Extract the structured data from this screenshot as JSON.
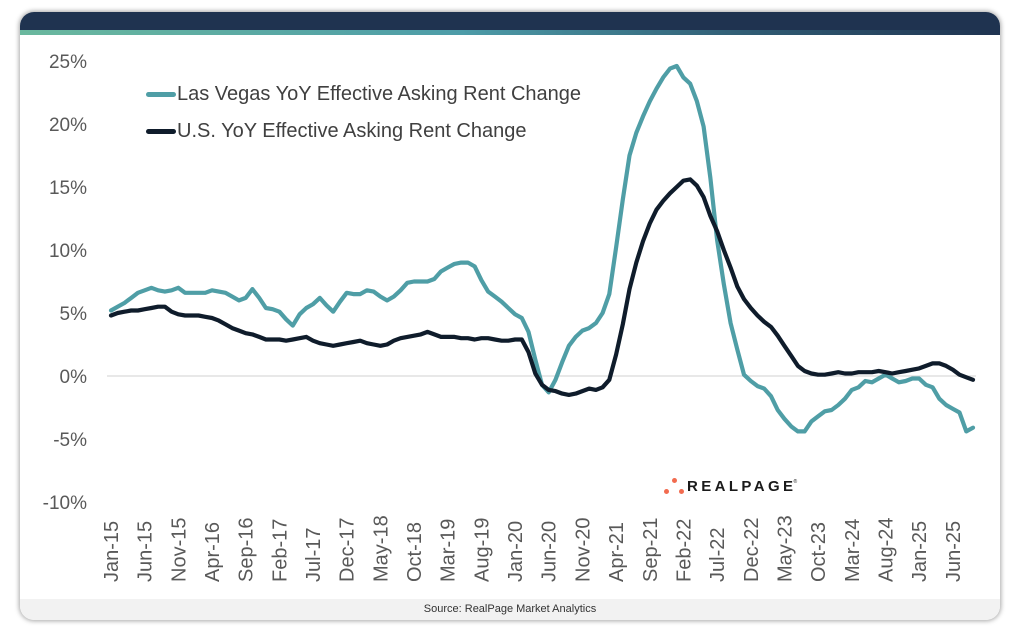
{
  "footer": {
    "source": "Source: RealPage Market Analytics"
  },
  "logo": {
    "text": "REALPAGE",
    "registered": "®",
    "dot_color": "#f26b4f"
  },
  "theme": {
    "header_color": "#1f3350",
    "footer_color": "#f2f2f2"
  },
  "chart_data": {
    "type": "line",
    "title": "",
    "xlabel": "",
    "ylabel": "",
    "ylim": [
      -10,
      25
    ],
    "yticks": [
      25,
      20,
      15,
      10,
      5,
      0,
      -5,
      -10
    ],
    "ytick_labels": [
      "25%",
      "20%",
      "15%",
      "10%",
      "5%",
      "0%",
      "-5%",
      "-10%"
    ],
    "grid": "zero line only",
    "legend_position": "top-left",
    "xticks": [
      "Jan-15",
      "Jun-15",
      "Nov-15",
      "Apr-16",
      "Sep-16",
      "Feb-17",
      "Jul-17",
      "Dec-17",
      "May-18",
      "Oct-18",
      "Mar-19",
      "Aug-19",
      "Jan-20",
      "Jun-20",
      "Nov-20",
      "Apr-21",
      "Sep-21",
      "Feb-22",
      "Jul-22",
      "Dec-22",
      "May-23",
      "Oct-23",
      "Mar-24",
      "Aug-24",
      "Jan-25",
      "Jun-25"
    ],
    "x": [
      "Jan-15",
      "Feb-15",
      "Mar-15",
      "Apr-15",
      "May-15",
      "Jun-15",
      "Jul-15",
      "Aug-15",
      "Sep-15",
      "Oct-15",
      "Nov-15",
      "Dec-15",
      "Jan-16",
      "Feb-16",
      "Mar-16",
      "Apr-16",
      "May-16",
      "Jun-16",
      "Jul-16",
      "Aug-16",
      "Sep-16",
      "Oct-16",
      "Nov-16",
      "Dec-16",
      "Jan-17",
      "Feb-17",
      "Mar-17",
      "Apr-17",
      "May-17",
      "Jun-17",
      "Jul-17",
      "Aug-17",
      "Sep-17",
      "Oct-17",
      "Nov-17",
      "Dec-17",
      "Jan-18",
      "Feb-18",
      "Mar-18",
      "Apr-18",
      "May-18",
      "Jun-18",
      "Jul-18",
      "Aug-18",
      "Sep-18",
      "Oct-18",
      "Nov-18",
      "Dec-18",
      "Jan-19",
      "Feb-19",
      "Mar-19",
      "Apr-19",
      "May-19",
      "Jun-19",
      "Jul-19",
      "Aug-19",
      "Sep-19",
      "Oct-19",
      "Nov-19",
      "Dec-19",
      "Jan-20",
      "Feb-20",
      "Mar-20",
      "Apr-20",
      "May-20",
      "Jun-20",
      "Jul-20",
      "Aug-20",
      "Sep-20",
      "Oct-20",
      "Nov-20",
      "Dec-20",
      "Jan-21",
      "Feb-21",
      "Mar-21",
      "Apr-21",
      "May-21",
      "Jun-21",
      "Jul-21",
      "Aug-21",
      "Sep-21",
      "Oct-21",
      "Nov-21",
      "Dec-21",
      "Jan-22",
      "Feb-22",
      "Mar-22",
      "Apr-22",
      "May-22",
      "Jun-22",
      "Jul-22",
      "Aug-22",
      "Sep-22",
      "Oct-22",
      "Nov-22",
      "Dec-22",
      "Jan-23",
      "Feb-23",
      "Mar-23",
      "Apr-23",
      "May-23",
      "Jun-23",
      "Jul-23",
      "Aug-23",
      "Sep-23",
      "Oct-23",
      "Nov-23",
      "Dec-23",
      "Jan-24",
      "Feb-24",
      "Mar-24",
      "Apr-24",
      "May-24",
      "Jun-24",
      "Jul-24",
      "Aug-24",
      "Sep-24",
      "Oct-24",
      "Nov-24",
      "Dec-24",
      "Jan-25",
      "Feb-25",
      "Mar-25",
      "Apr-25",
      "May-25",
      "Jun-25",
      "Jul-25",
      "Aug-25",
      "Sep-25"
    ],
    "series": [
      {
        "name": "Las Vegas YoY Effective Asking Rent Change",
        "color": "#4f9ea6",
        "values": [
          5.2,
          5.5,
          5.8,
          6.2,
          6.6,
          6.8,
          7.0,
          6.8,
          6.7,
          6.8,
          7.0,
          6.6,
          6.6,
          6.6,
          6.6,
          6.8,
          6.7,
          6.6,
          6.3,
          6.0,
          6.2,
          6.9,
          6.2,
          5.4,
          5.3,
          5.1,
          4.5,
          4.0,
          4.9,
          5.4,
          5.7,
          6.2,
          5.6,
          5.1,
          5.9,
          6.6,
          6.5,
          6.5,
          6.8,
          6.7,
          6.3,
          6.0,
          6.3,
          6.8,
          7.4,
          7.5,
          7.5,
          7.5,
          7.7,
          8.3,
          8.6,
          8.9,
          9.0,
          9.0,
          8.7,
          7.6,
          6.7,
          6.3,
          5.9,
          5.4,
          4.9,
          4.6,
          3.5,
          1.3,
          -0.7,
          -1.3,
          -0.3,
          1.1,
          2.4,
          3.1,
          3.6,
          3.8,
          4.2,
          5.0,
          6.5,
          10.2,
          14.0,
          17.5,
          19.3,
          20.6,
          21.8,
          22.8,
          23.7,
          24.4,
          24.6,
          23.7,
          23.2,
          21.8,
          19.8,
          15.7,
          10.8,
          7.3,
          4.2,
          2.1,
          0.1,
          -0.4,
          -0.8,
          -1.0,
          -1.6,
          -2.7,
          -3.4,
          -4.0,
          -4.4,
          -4.4,
          -3.6,
          -3.2,
          -2.8,
          -2.7,
          -2.3,
          -1.8,
          -1.1,
          -0.9,
          -0.4,
          -0.5,
          -0.2,
          0.1,
          -0.2,
          -0.5,
          -0.4,
          -0.2,
          -0.2,
          -0.7,
          -0.9,
          -1.8,
          -2.3,
          -2.6,
          -2.9,
          -4.4,
          -4.1
        ]
      },
      {
        "name": "U.S. YoY Effective Asking Rent Change",
        "color": "#0f1c2b",
        "values": [
          4.8,
          5.0,
          5.1,
          5.2,
          5.2,
          5.3,
          5.4,
          5.5,
          5.5,
          5.1,
          4.9,
          4.8,
          4.8,
          4.8,
          4.7,
          4.6,
          4.4,
          4.1,
          3.8,
          3.6,
          3.4,
          3.3,
          3.1,
          2.9,
          2.9,
          2.9,
          2.8,
          2.9,
          3.0,
          3.1,
          2.8,
          2.6,
          2.5,
          2.4,
          2.5,
          2.6,
          2.7,
          2.8,
          2.6,
          2.5,
          2.4,
          2.5,
          2.8,
          3.0,
          3.1,
          3.2,
          3.3,
          3.5,
          3.3,
          3.1,
          3.1,
          3.1,
          3.0,
          3.0,
          2.9,
          3.0,
          3.0,
          2.9,
          2.8,
          2.8,
          2.9,
          2.9,
          1.9,
          0.2,
          -0.7,
          -1.1,
          -1.2,
          -1.4,
          -1.5,
          -1.4,
          -1.2,
          -1.0,
          -1.1,
          -0.9,
          -0.3,
          1.7,
          4.1,
          6.9,
          9.0,
          10.7,
          12.1,
          13.2,
          13.9,
          14.5,
          15.0,
          15.5,
          15.6,
          15.1,
          14.2,
          12.7,
          11.5,
          10.0,
          8.6,
          7.1,
          6.1,
          5.4,
          4.8,
          4.3,
          3.9,
          3.2,
          2.4,
          1.6,
          0.8,
          0.4,
          0.2,
          0.1,
          0.1,
          0.2,
          0.3,
          0.2,
          0.2,
          0.3,
          0.3,
          0.3,
          0.4,
          0.3,
          0.2,
          0.3,
          0.4,
          0.5,
          0.6,
          0.8,
          1.0,
          1.0,
          0.8,
          0.5,
          0.1,
          -0.1,
          -0.3
        ]
      }
    ]
  }
}
